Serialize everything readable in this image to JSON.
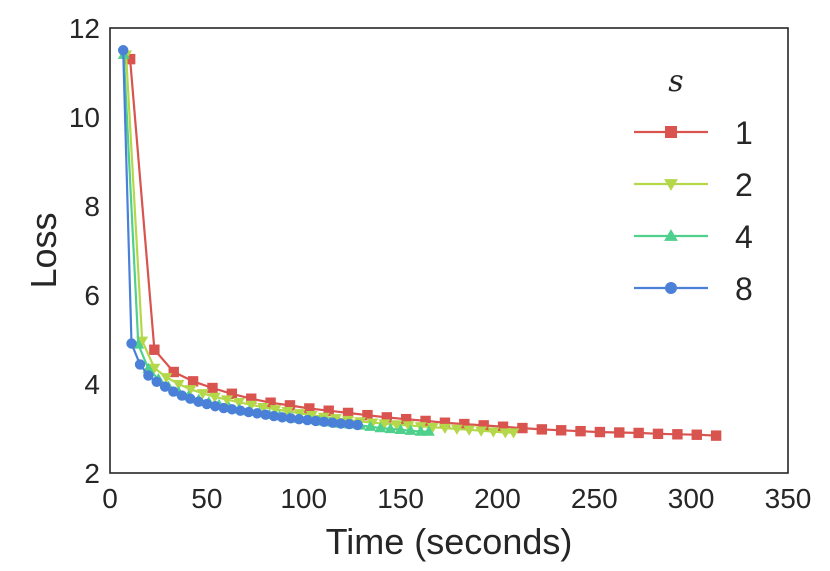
{
  "chart_data": {
    "type": "line",
    "title": "",
    "xlabel": "Time (seconds)",
    "ylabel": "Loss",
    "xlim": [
      0,
      350
    ],
    "ylim": [
      2,
      12
    ],
    "xticks": [
      0,
      50,
      100,
      150,
      200,
      250,
      300,
      350
    ],
    "yticks": [
      2,
      4,
      6,
      8,
      10,
      12
    ],
    "grid": false,
    "legend": {
      "title": "s",
      "placement": "top-right"
    },
    "series": [
      {
        "name": "1",
        "color": "#d9534f",
        "marker": "square",
        "x": [
          10.4,
          22.9,
          32.9,
          42.9,
          52.9,
          62.9,
          72.9,
          82.9,
          92.9,
          102.9,
          112.9,
          122.9,
          132.9,
          142.9,
          152.9,
          162.9,
          172.9,
          182.9,
          192.9,
          202.9,
          212.9,
          222.9,
          232.9,
          242.9,
          252.9,
          262.9,
          272.9,
          282.9,
          292.9,
          302.9,
          312.9
        ],
        "y": [
          11.3,
          4.77,
          4.27,
          4.06,
          3.91,
          3.78,
          3.67,
          3.58,
          3.52,
          3.45,
          3.4,
          3.35,
          3.3,
          3.25,
          3.21,
          3.17,
          3.13,
          3.1,
          3.07,
          3.04,
          3.01,
          2.98,
          2.96,
          2.94,
          2.92,
          2.91,
          2.9,
          2.88,
          2.87,
          2.86,
          2.84
        ]
      },
      {
        "name": "2",
        "color": "#b5d84a",
        "marker": "triangle-down",
        "x": [
          8.3,
          16.6,
          22.9,
          29.1,
          35.4,
          41.6,
          47.9,
          54.1,
          60.4,
          66.6,
          72.9,
          79.1,
          85.4,
          91.6,
          97.9,
          104.1,
          110.4,
          116.6,
          122.9,
          129.1,
          135.4,
          141.6,
          147.9,
          154.1,
          160.4,
          166.6,
          172.9,
          179.1,
          185.4,
          191.6,
          197.9,
          204.1,
          208.3
        ],
        "y": [
          11.4,
          4.97,
          4.36,
          4.15,
          4.0,
          3.88,
          3.79,
          3.71,
          3.65,
          3.59,
          3.53,
          3.48,
          3.43,
          3.39,
          3.34,
          3.3,
          3.26,
          3.23,
          3.19,
          3.16,
          3.13,
          3.11,
          3.09,
          3.07,
          3.05,
          3.03,
          3.01,
          2.99,
          2.97,
          2.95,
          2.93,
          2.91,
          2.91
        ]
      },
      {
        "name": "4",
        "color": "#4fd08c",
        "marker": "triangle-up",
        "x": [
          7.1,
          14.6,
          19.8,
          25.0,
          30.2,
          35.4,
          40.6,
          45.8,
          51.0,
          56.3,
          61.5,
          66.7,
          71.9,
          77.1,
          82.3,
          87.5,
          92.7,
          97.9,
          103.1,
          108.3,
          113.5,
          118.8,
          124.0,
          129.2,
          134.4,
          139.6,
          144.8,
          150.0,
          155.2,
          160.4,
          164.6
        ],
        "y": [
          11.4,
          4.89,
          4.34,
          4.11,
          3.94,
          3.82,
          3.73,
          3.65,
          3.59,
          3.53,
          3.47,
          3.43,
          3.39,
          3.35,
          3.31,
          3.28,
          3.25,
          3.22,
          3.19,
          3.16,
          3.14,
          3.11,
          3.09,
          3.07,
          3.04,
          3.01,
          2.99,
          2.97,
          2.95,
          2.93,
          2.93
        ]
      },
      {
        "name": "8",
        "color": "#4a80d8",
        "marker": "circle",
        "x": [
          6.8,
          11.1,
          15.5,
          19.8,
          24.1,
          28.4,
          32.7,
          37.1,
          41.4,
          45.7,
          50.0,
          54.3,
          58.7,
          63.0,
          67.3,
          71.6,
          76.0,
          80.3,
          84.6,
          88.9,
          93.3,
          97.6,
          101.9,
          106.2,
          110.5,
          114.9,
          119.2,
          123.5,
          127.8
        ],
        "y": [
          11.5,
          4.91,
          4.44,
          4.19,
          4.05,
          3.94,
          3.83,
          3.74,
          3.67,
          3.6,
          3.55,
          3.5,
          3.46,
          3.43,
          3.4,
          3.37,
          3.34,
          3.31,
          3.28,
          3.25,
          3.23,
          3.21,
          3.19,
          3.17,
          3.15,
          3.13,
          3.11,
          3.1,
          3.08
        ]
      }
    ]
  }
}
